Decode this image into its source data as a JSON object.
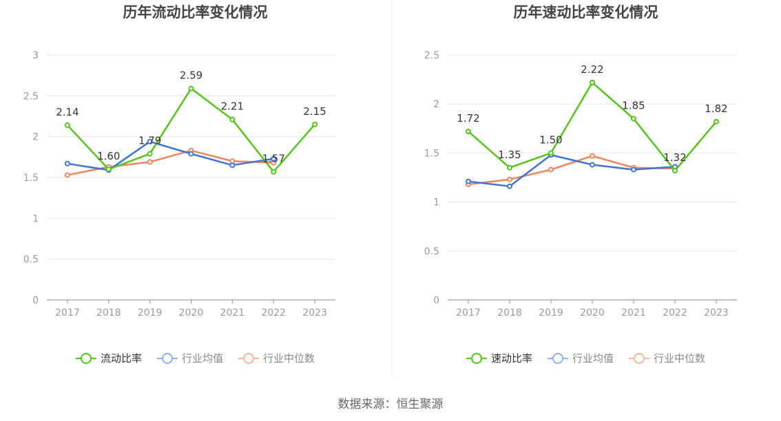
{
  "charts": [
    {
      "title": "历年流动比率变化情况",
      "legend": [
        "流动比率",
        "行业均值",
        "行业中位数"
      ]
    },
    {
      "title": "历年速动比率变化情况",
      "legend": [
        "速动比率",
        "行业均值",
        "行业中位数"
      ]
    }
  ],
  "source": "数据来源：恒生聚源",
  "colors": {
    "green": "#52c41a",
    "blue": "#3b73d9",
    "orange": "#f0845c",
    "grid": "#e6e6e6",
    "axis": "#888888",
    "tick": "#999999"
  },
  "chart_data": [
    {
      "type": "line",
      "title": "历年流动比率变化情况",
      "categories": [
        "2017",
        "2018",
        "2019",
        "2020",
        "2021",
        "2022",
        "2023"
      ],
      "ylim": [
        0,
        3
      ],
      "yticks": [
        "0",
        "0.5",
        "1",
        "1.5",
        "2",
        "2.5",
        "3"
      ],
      "grid": true,
      "legend_position": "bottom",
      "series": [
        {
          "name": "流动比率",
          "color": "#52c41a",
          "values": [
            2.14,
            1.6,
            1.79,
            2.59,
            2.21,
            1.57,
            2.15
          ],
          "labels": [
            "2.14",
            "1.60",
            "1.79",
            "2.59",
            "2.21",
            "1.57",
            "2.15"
          ]
        },
        {
          "name": "行业均值",
          "color": "#3b73d9",
          "values": [
            1.67,
            1.59,
            1.94,
            1.79,
            1.65,
            1.73,
            null
          ]
        },
        {
          "name": "行业中位数",
          "color": "#f0845c",
          "values": [
            1.53,
            1.63,
            1.69,
            1.83,
            1.7,
            1.68,
            null
          ]
        }
      ]
    },
    {
      "type": "line",
      "title": "历年速动比率变化情况",
      "categories": [
        "2017",
        "2018",
        "2019",
        "2020",
        "2021",
        "2022",
        "2023"
      ],
      "ylim": [
        0,
        2.5
      ],
      "yticks": [
        "0",
        "0.5",
        "1",
        "1.5",
        "2",
        "2.5"
      ],
      "grid": true,
      "legend_position": "bottom",
      "series": [
        {
          "name": "速动比率",
          "color": "#52c41a",
          "values": [
            1.72,
            1.35,
            1.5,
            2.22,
            1.85,
            1.32,
            1.82
          ],
          "labels": [
            "1.72",
            "1.35",
            "1.50",
            "2.22",
            "1.85",
            "1.32",
            "1.82"
          ]
        },
        {
          "name": "行业均值",
          "color": "#3b73d9",
          "values": [
            1.21,
            1.16,
            1.48,
            1.38,
            1.33,
            1.36,
            null
          ]
        },
        {
          "name": "行业中位数",
          "color": "#f0845c",
          "values": [
            1.18,
            1.23,
            1.33,
            1.47,
            1.35,
            1.34,
            null
          ]
        }
      ]
    }
  ]
}
